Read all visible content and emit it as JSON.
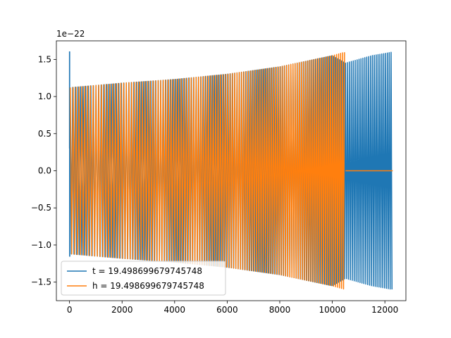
{
  "chart_data": {
    "type": "line",
    "title": "",
    "xlabel": "",
    "ylabel": "",
    "y_offset_text": "1e−22",
    "xlim": [
      -500,
      12800
    ],
    "ylim": [
      -1.75,
      1.75
    ],
    "x_ticks": [
      0,
      2000,
      4000,
      6000,
      8000,
      10000,
      12000
    ],
    "y_ticks": [
      -1.5,
      -1.0,
      -0.5,
      0.0,
      0.5,
      1.0,
      1.5
    ],
    "x_tick_labels": [
      "0",
      "2000",
      "4000",
      "6000",
      "8000",
      "10000",
      "12000"
    ],
    "y_tick_labels": [
      "−1.5",
      "−1.0",
      "−0.5",
      "0.0",
      "0.5",
      "1.0",
      "1.5"
    ],
    "legend_position": "lower-left",
    "series": [
      {
        "name": "t = 19.498699679745748",
        "color": "#1f77b4",
        "description_points": {
          "x": [
            0,
            10,
            20,
            30,
            2000,
            4000,
            6000,
            8000,
            10000,
            10500,
            11000,
            11500,
            12000,
            12300
          ],
          "upper_envelope": [
            1.6,
            -1.15,
            1.12,
            1.12,
            1.18,
            1.23,
            1.3,
            1.4,
            1.55,
            1.45,
            1.5,
            1.55,
            1.58,
            1.6
          ],
          "lower_envelope": [
            -1.15,
            -1.15,
            -1.12,
            -1.12,
            -1.18,
            -1.23,
            -1.3,
            -1.4,
            -1.55,
            -1.45,
            -1.5,
            -1.55,
            -1.58,
            -1.6
          ]
        }
      },
      {
        "name": "h = 19.498699679745748",
        "color": "#ff7f0e",
        "description_points": {
          "x": [
            30,
            2000,
            4000,
            6000,
            8000,
            10000,
            10500,
            12300
          ],
          "upper_envelope": [
            1.12,
            1.18,
            1.23,
            1.3,
            1.4,
            1.55,
            1.6,
            0.0
          ],
          "lower_envelope": [
            -1.12,
            -1.18,
            -1.23,
            -1.3,
            -1.4,
            -1.55,
            -1.6,
            0.0
          ]
        }
      }
    ]
  }
}
